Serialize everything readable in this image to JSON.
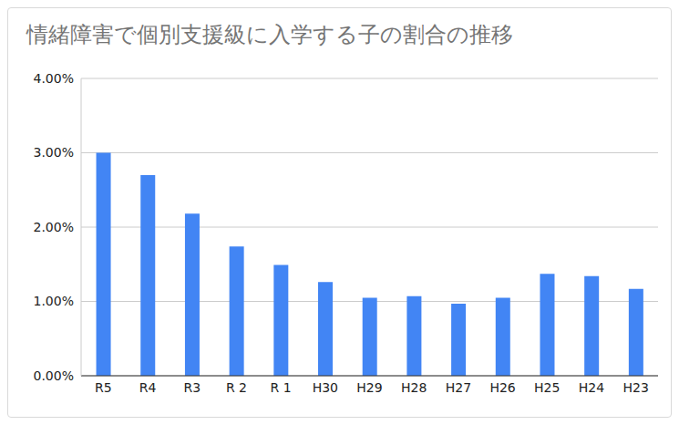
{
  "chart_data": {
    "type": "bar",
    "title": "情緒障害で個別支援級に入学する子の割合の推移",
    "categories": [
      "R5",
      "R4",
      "R3",
      "R 2",
      "R 1",
      "H30",
      "H29",
      "H28",
      "H27",
      "H26",
      "H25",
      "H24",
      "H23"
    ],
    "values": [
      3.0,
      2.7,
      2.18,
      1.74,
      1.49,
      1.26,
      1.05,
      1.07,
      0.97,
      1.05,
      1.37,
      1.34,
      1.17
    ],
    "color": "#4285f4",
    "ylim": [
      0,
      4
    ],
    "yticks": [
      {
        "value": 0,
        "label": "0.00%"
      },
      {
        "value": 1,
        "label": "1.00%"
      },
      {
        "value": 2,
        "label": "2.00%"
      },
      {
        "value": 3,
        "label": "3.00%"
      },
      {
        "value": 4,
        "label": "4.00%"
      }
    ],
    "grid": true
  }
}
